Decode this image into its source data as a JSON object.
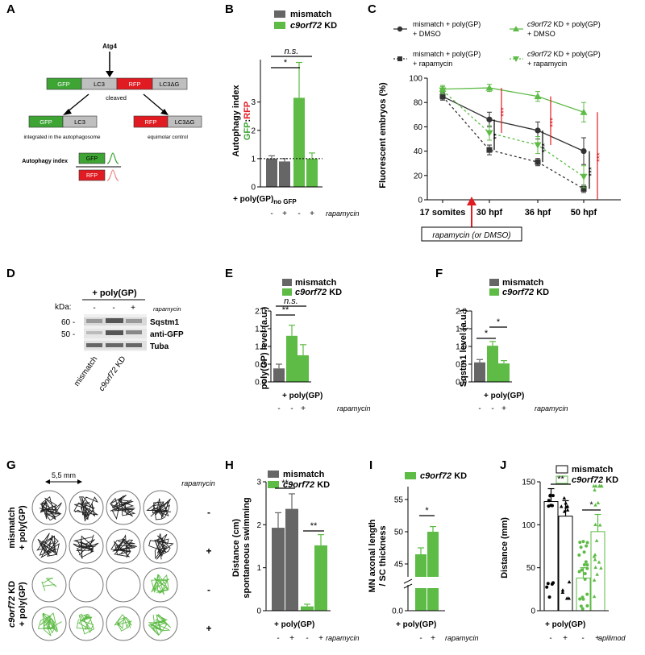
{
  "colors": {
    "mismatch": "#666666",
    "kd": "#5dbb46",
    "red": "#e11b22",
    "gray": "#bfbfbf",
    "gfp": "#3ea535"
  },
  "panels": {
    "A": "A",
    "B": "B",
    "C": "C",
    "D": "D",
    "E": "E",
    "F": "F",
    "G": "G",
    "H": "H",
    "I": "I",
    "J": "J"
  },
  "panelA": {
    "atg4": "Atg4",
    "cleaved": "cleaved",
    "seg": [
      "GFP",
      "LC3",
      "RFP",
      "LC3ΔG"
    ],
    "left_caption": "integrated in the autophagosome",
    "right_caption": "equimolar control",
    "index_label": "Autophagy index",
    "gfp": "GFP",
    "rfp": "RFP",
    "lc3": "LC3",
    "lc3dg": "LC3ΔG"
  },
  "legends": {
    "mismatch": "mismatch",
    "kd_italic": "c9orf72",
    "kd_suffix": " KD"
  },
  "common": {
    "polygp": "+ poly(GP)",
    "rapamycin": "rapamycin",
    "apilimod": "apilimod",
    "minus": "-",
    "plus": "+",
    "ns": "n.s.",
    "star1": "*",
    "star2": "**",
    "star3": "***"
  },
  "panelB": {
    "ylabel": "Autophagy index",
    "ylabel2a": "GFP",
    "ylabel2b": ":",
    "ylabel2c": "RFP",
    "xlabel_main": "+ poly(GP)",
    "xlabel_sub": "no GFP",
    "ticks": [
      "0",
      "1",
      "2",
      "3"
    ]
  },
  "panelC": {
    "legend": [
      {
        "name": "mismatch + poly(GP)",
        "line2": "+ DMSO"
      },
      {
        "name_i": "c9orf72",
        "name": " KD + poly(GP)",
        "line2": "+ DMSO"
      },
      {
        "name": "mismatch + poly(GP)",
        "line2": "+ rapamycin"
      },
      {
        "name_i": "c9orf72",
        "name": " KD + poly(GP)",
        "line2": "+ rapamycin"
      }
    ],
    "ylabel": "Fluorescent embryos (%)",
    "ticks": [
      "0",
      "20",
      "40",
      "60",
      "80",
      "100"
    ],
    "xticks": [
      "17 somites",
      "30 hpf",
      "36 hpf",
      "50 hpf"
    ],
    "boxed": "rapamycin (or DMSO)"
  },
  "panelD": {
    "title": "+ poly(GP)",
    "kda": "kDa:",
    "m60": "60 -",
    "m50": "50 -",
    "labels": [
      "Sqstm1",
      "anti-GFP",
      "Tuba"
    ],
    "rap": "rapamycin",
    "xl1": "mismatch",
    "xl2i": "c9orf72",
    "xl2": " KD"
  },
  "panelE": {
    "ylabel": "poly(GP) level (a.u.)",
    "ticks": [
      "0.0",
      "0.5",
      "1.0",
      "1.5",
      "2.0"
    ]
  },
  "panelF": {
    "ylabel": "Sqstm1 level (a.u.)",
    "ticks": [
      "0.0",
      "0.5",
      "1.0",
      "1.5",
      "2.0"
    ]
  },
  "panelG": {
    "scale": "5,5 mm",
    "rap": "rapamycin",
    "row1a": "mismatch",
    "row1b": "+ poly(GP)",
    "row2a": "c9orf72",
    "row2b": " KD",
    "row2c": "+ poly(GP)"
  },
  "panelH": {
    "ylabel1": "Distance (cm)",
    "ylabel2": "spontaneous swimming",
    "ticks": [
      "0",
      "1",
      "2",
      "3"
    ]
  },
  "panelI": {
    "ylabel1": "MN axonal length",
    "ylabel2": "/ SC thickness",
    "ticks": [
      "0.0",
      "45",
      "50",
      "55"
    ]
  },
  "panelJ": {
    "ylabel": "Distance (mm)",
    "ticks": [
      "0",
      "50",
      "100",
      "150"
    ]
  },
  "chart_data": [
    {
      "panel": "B",
      "type": "bar",
      "ylabel": "Autophagy index GFP:RFP",
      "ylim": [
        0,
        4.5
      ],
      "series": [
        {
          "name": "mismatch",
          "values": [
            1.0,
            0.9
          ]
        },
        {
          "name": "c9orf72 KD",
          "values": [
            3.15,
            1.0
          ]
        }
      ],
      "errors": [
        [
          0.1,
          0.1
        ],
        [
          1.25,
          0.2
        ]
      ],
      "conditions": [
        "-",
        "+"
      ]
    },
    {
      "panel": "C",
      "type": "line",
      "x": [
        "17 somites",
        "30 hpf",
        "36 hpf",
        "50 hpf"
      ],
      "ylim": [
        0,
        100
      ],
      "ylabel": "Fluorescent embryos (%)",
      "series": [
        {
          "name": "mismatch + poly(GP) + DMSO",
          "values": [
            85,
            66,
            57,
            40
          ]
        },
        {
          "name": "c9orf72 KD + poly(GP) + DMSO",
          "values": [
            91,
            92,
            85,
            72
          ]
        },
        {
          "name": "mismatch + poly(GP) + rapamycin",
          "values": [
            85,
            41,
            31,
            9
          ]
        },
        {
          "name": "c9orf72 KD + poly(GP) + rapamycin",
          "values": [
            90,
            55,
            45,
            19
          ]
        }
      ]
    },
    {
      "panel": "E",
      "type": "bar",
      "ylabel": "poly(GP) level (a.u.)",
      "ylim": [
        0,
        2.0
      ],
      "values": [
        0.38,
        1.3,
        0.75
      ],
      "errors": [
        0.12,
        0.3,
        0.3
      ],
      "groups": [
        "mismatch",
        "c9orf72 KD",
        "c9orf72 KD"
      ],
      "conditions": [
        "-",
        "-",
        "+"
      ]
    },
    {
      "panel": "F",
      "type": "bar",
      "ylabel": "Sqstm1 level (a.u.)",
      "ylim": [
        0,
        2.0
      ],
      "values": [
        0.55,
        1.02,
        0.52
      ],
      "errors": [
        0.08,
        0.12,
        0.08
      ],
      "groups": [
        "mismatch",
        "c9orf72 KD",
        "c9orf72 KD"
      ],
      "conditions": [
        "-",
        "-",
        "+"
      ]
    },
    {
      "panel": "H",
      "type": "bar",
      "ylabel": "Distance (cm) spontaneous swimming",
      "ylim": [
        0,
        3
      ],
      "series": [
        {
          "name": "mismatch",
          "values": [
            1.93,
            2.37
          ]
        },
        {
          "name": "c9orf72 KD",
          "values": [
            0.1,
            1.52
          ]
        }
      ],
      "errors": [
        [
          0.35,
          0.35
        ],
        [
          0.05,
          0.25
        ]
      ],
      "conditions": [
        "-",
        "+"
      ]
    },
    {
      "panel": "I",
      "type": "bar",
      "ylabel": "MN axonal length / SC thickness",
      "values": [
        46.5,
        50.0
      ],
      "errors": [
        1.0,
        0.8
      ],
      "conditions": [
        "-",
        "+"
      ]
    },
    {
      "panel": "J",
      "type": "bar",
      "ylabel": "Distance (mm)",
      "ylim": [
        0,
        150
      ],
      "series": [
        {
          "name": "mismatch",
          "values": [
            127,
            110
          ]
        },
        {
          "name": "c9orf72 KD",
          "values": [
            38,
            92
          ]
        }
      ],
      "errors": [
        [
          15,
          18
        ],
        [
          12,
          20
        ]
      ],
      "conditions": [
        "-",
        "+"
      ]
    }
  ]
}
